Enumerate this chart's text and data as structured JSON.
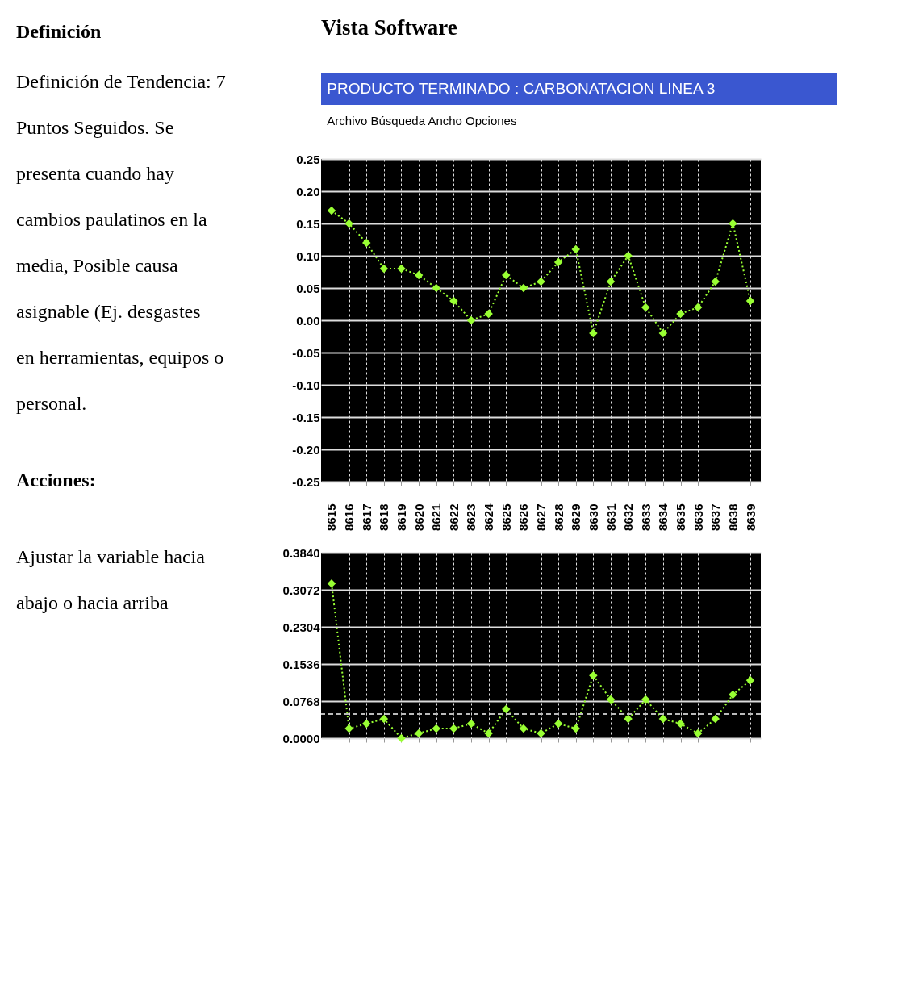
{
  "chart_data": [
    {
      "type": "other",
      "title": "Definición",
      "annotations": [
        "Definición de Tendencia: 7 Puntos Seguidos. Se presenta cuando hay cambios paulatinos en la media, Posible causa asignable (Ej. desgastes en herramientas, equipos o personal.",
        "Acciones:",
        "Ajustar la variable hacia abajo o hacia arriba"
      ]
    },
    {
      "type": "line",
      "title": "Vista Software",
      "subtitle": "PRODUCTO TERMINADO : CARBONATACION LINEA 3",
      "annotations": [
        "Archivo  Búsqueda  Ancho  Opciones"
      ],
      "categories": [
        "8615",
        "8616",
        "8617",
        "8618",
        "8619",
        "8620",
        "8621",
        "8622",
        "8623",
        "8624",
        "8625",
        "8626",
        "8627",
        "8628",
        "8629",
        "8630",
        "8631",
        "8632",
        "8633",
        "8634",
        "8635",
        "8636",
        "8637",
        "8638",
        "8639"
      ],
      "series": [
        {
          "color": "#99ff33",
          "values": [
            0.17,
            0.15,
            0.12,
            0.08,
            0.08,
            0.07,
            0.05,
            0.03,
            0.0,
            0.01,
            0.07,
            0.05,
            0.06,
            0.09,
            0.11,
            -0.02,
            0.06,
            0.1,
            0.02,
            -0.02,
            0.01,
            0.02,
            0.06,
            0.15,
            0.03
          ]
        }
      ],
      "ylim": [
        -0.25,
        0.25
      ],
      "yticks": [
        {
          "value": 0.25,
          "label": "0.25"
        },
        {
          "value": 0.2,
          "label": "0.20"
        },
        {
          "value": 0.15,
          "label": "0.15"
        },
        {
          "value": 0.1,
          "label": "0.10"
        },
        {
          "value": 0.05,
          "label": "0.05"
        },
        {
          "value": 0,
          "label": "0.00"
        },
        {
          "value": -0.05,
          "label": "-0.05"
        },
        {
          "value": -0.1,
          "label": "-0.10"
        },
        {
          "value": -0.15,
          "label": "-0.15"
        },
        {
          "value": -0.2,
          "label": "-0.20"
        },
        {
          "value": -0.25,
          "label": "-0.25"
        }
      ],
      "grid": true,
      "marker": "diamond",
      "line_style": "dotted"
    },
    {
      "type": "line",
      "categories": [
        "8615",
        "8616",
        "8617",
        "8618",
        "8619",
        "8620",
        "8621",
        "8622",
        "8623",
        "8624",
        "8625",
        "8626",
        "8627",
        "8628",
        "8629",
        "8630",
        "8631",
        "8632",
        "8633",
        "8634",
        "8635",
        "8636",
        "8637",
        "8638",
        "8639"
      ],
      "series": [
        {
          "color": "#99ff33",
          "values": [
            0.32,
            0.02,
            0.03,
            0.04,
            0.0,
            0.01,
            0.02,
            0.02,
            0.03,
            0.01,
            0.06,
            0.02,
            0.01,
            0.03,
            0.02,
            0.13,
            0.08,
            0.04,
            0.08,
            0.04,
            0.03,
            0.01,
            0.04,
            0.09,
            0.12
          ]
        }
      ],
      "ylim": [
        0,
        0.384
      ],
      "yticks": [
        {
          "value": 0,
          "label": "0.0000"
        },
        {
          "value": 0.0768,
          "label": "0.0768"
        },
        {
          "value": 0.1536,
          "label": "0.1536"
        },
        {
          "value": 0.2304,
          "label": "0.2304"
        },
        {
          "value": 0.3072,
          "label": "0.3072"
        },
        {
          "value": 0.384,
          "label": "0.3840"
        }
      ],
      "ref_lines": [
        {
          "axis": "y",
          "value": 0.05,
          "color": "#bbbbbb",
          "line_style": "dashed"
        }
      ],
      "tick_labels": "y",
      "grid": true,
      "marker": "diamond",
      "line_style": "dotted"
    }
  ]
}
